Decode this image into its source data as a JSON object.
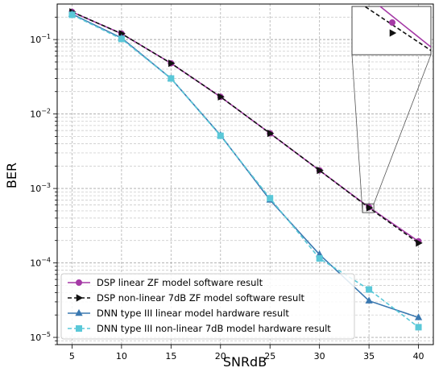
{
  "chart_data": {
    "type": "line",
    "xlabel": "SNRdB",
    "ylabel": "BER",
    "y_scale": "log",
    "xlim": [
      3.5,
      41.5
    ],
    "ylim": [
      8e-06,
      0.3
    ],
    "x_ticks": [
      5,
      10,
      15,
      20,
      25,
      30,
      35,
      40
    ],
    "x_tick_labels": [
      "5",
      "10",
      "15",
      "20",
      "25",
      "30",
      "35",
      "40"
    ],
    "y_ticks": [
      1e-05,
      0.0001,
      0.001,
      0.01,
      0.1
    ],
    "y_tick_labels": [
      {
        "base": "10",
        "exp": "−5"
      },
      {
        "base": "10",
        "exp": "−4"
      },
      {
        "base": "10",
        "exp": "−3"
      },
      {
        "base": "10",
        "exp": "−2"
      },
      {
        "base": "10",
        "exp": "−1"
      }
    ],
    "grid": true,
    "legend_position": "lower-left",
    "inset": true,
    "x": [
      5,
      10,
      15,
      20,
      25,
      30,
      35,
      40
    ],
    "series": [
      {
        "name": "DSP linear ZF model software result",
        "color": "#a53aa6",
        "dash": "solid",
        "marker": "circle",
        "values": [
          0.235,
          0.12,
          0.048,
          0.017,
          0.0055,
          0.00175,
          0.00056,
          0.000195
        ]
      },
      {
        "name": "DSP non-linear 7dB ZF model software result",
        "color": "#111111",
        "dash": "dashed",
        "marker": "triangle-right",
        "values": [
          0.235,
          0.12,
          0.048,
          0.017,
          0.0055,
          0.00175,
          0.00055,
          0.000185
        ]
      },
      {
        "name": "DNN type III linear model hardware result",
        "color": "#3a78b0",
        "dash": "solid",
        "marker": "triangle-up",
        "values": [
          0.22,
          0.105,
          0.03,
          0.0052,
          0.0007,
          0.00013,
          3.1e-05,
          1.85e-05
        ]
      },
      {
        "name": "DNN type III non-linear 7dB model hardware result",
        "color": "#5ac8d8",
        "dash": "dashed",
        "marker": "square",
        "values": [
          0.215,
          0.102,
          0.03,
          0.0051,
          0.00074,
          0.000115,
          4.4e-05,
          1.37e-05
        ]
      }
    ]
  }
}
